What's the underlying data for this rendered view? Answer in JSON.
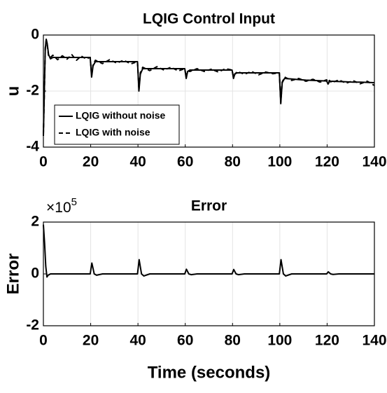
{
  "chart_data": [
    {
      "type": "line",
      "title": "LQIG Control Input",
      "ylabel": "u",
      "x": [
        0,
        0.4,
        0.8,
        1.2,
        1.6,
        2.2,
        3,
        4,
        6,
        8,
        10,
        12,
        14,
        16,
        18,
        19.8,
        20.4,
        21,
        22,
        25,
        28,
        31,
        34,
        37,
        39.8,
        40.4,
        41,
        42,
        45,
        48,
        51,
        54,
        57,
        59.8,
        60.4,
        61,
        62,
        65,
        68,
        71,
        74,
        77,
        79.8,
        80.4,
        81,
        82,
        85,
        88,
        91,
        94,
        97,
        99.8,
        100.4,
        101,
        102,
        105,
        108,
        111,
        114,
        117,
        119.8,
        120.4,
        121,
        122,
        125,
        128,
        131,
        134,
        137,
        140
      ],
      "series": [
        {
          "name": "LQIG without noise",
          "color": "#000000",
          "line_style": "solid",
          "values": [
            -3.6,
            -2.0,
            -0.5,
            -0.15,
            -0.3,
            -0.7,
            -0.85,
            -0.8,
            -0.8,
            -0.8,
            -0.8,
            -0.8,
            -0.8,
            -0.8,
            -0.8,
            -0.8,
            -1.5,
            -1.1,
            -0.95,
            -0.95,
            -0.95,
            -0.95,
            -0.95,
            -0.95,
            -0.95,
            -2.0,
            -1.4,
            -1.2,
            -1.2,
            -1.2,
            -1.2,
            -1.2,
            -1.2,
            -1.2,
            -1.55,
            -1.3,
            -1.25,
            -1.25,
            -1.25,
            -1.25,
            -1.25,
            -1.25,
            -1.25,
            -1.55,
            -1.38,
            -1.35,
            -1.35,
            -1.35,
            -1.35,
            -1.35,
            -1.35,
            -1.35,
            -2.45,
            -1.7,
            -1.55,
            -1.57,
            -1.59,
            -1.61,
            -1.62,
            -1.63,
            -1.64,
            -1.75,
            -1.66,
            -1.65,
            -1.66,
            -1.67,
            -1.68,
            -1.68,
            -1.69,
            -1.7
          ]
        },
        {
          "name": "LQIG with noise",
          "color": "#000000",
          "line_style": "dashed",
          "values": [
            -3.55,
            -2.1,
            -0.45,
            -0.2,
            -0.35,
            -0.75,
            -0.8,
            -0.72,
            -0.88,
            -0.74,
            -0.86,
            -0.7,
            -0.9,
            -0.75,
            -0.85,
            -0.8,
            -1.45,
            -1.05,
            -0.9,
            -1.02,
            -0.88,
            -1.0,
            -0.9,
            -1.03,
            -0.95,
            -1.95,
            -1.35,
            -1.15,
            -1.27,
            -1.13,
            -1.25,
            -1.15,
            -1.28,
            -1.2,
            -1.5,
            -1.28,
            -1.3,
            -1.2,
            -1.3,
            -1.22,
            -1.32,
            -1.2,
            -1.25,
            -1.5,
            -1.4,
            -1.3,
            -1.4,
            -1.3,
            -1.42,
            -1.32,
            -1.38,
            -1.35,
            -2.4,
            -1.68,
            -1.5,
            -1.62,
            -1.55,
            -1.65,
            -1.58,
            -1.68,
            -1.6,
            -1.7,
            -1.62,
            -1.7,
            -1.6,
            -1.72,
            -1.63,
            -1.74,
            -1.65,
            -1.8
          ]
        }
      ],
      "xlim": [
        0,
        140
      ],
      "xticks": [
        0,
        20,
        40,
        60,
        80,
        100,
        120,
        140
      ],
      "ylim": [
        -4,
        0
      ],
      "yticks": [
        -4,
        -2,
        0
      ],
      "grid": true,
      "legend": "lower left"
    },
    {
      "type": "line",
      "title": "Error",
      "ylabel": "Error",
      "xlabel": "Time (seconds)",
      "y_multiplier": "×10",
      "y_multiplier_exponent": "5",
      "x": [
        0,
        0.5,
        1,
        1.5,
        2,
        3,
        5,
        10,
        15,
        19.8,
        20.5,
        21.5,
        22.5,
        25,
        30,
        35,
        39.8,
        40.5,
        41.5,
        42.5,
        45,
        50,
        55,
        59.8,
        60.5,
        61.5,
        62.5,
        65,
        70,
        75,
        79.8,
        80.5,
        81.5,
        82.5,
        85,
        90,
        95,
        99.8,
        100.5,
        101.5,
        102.5,
        105,
        110,
        115,
        119.8,
        120.5,
        121.5,
        122.5,
        125,
        130,
        135,
        140
      ],
      "values": [
        1.9,
        1.2,
        0.3,
        -0.12,
        -0.05,
        0,
        0,
        0,
        0,
        0,
        0.42,
        0,
        -0.05,
        0,
        0,
        0,
        0,
        0.55,
        0,
        -0.08,
        0,
        0,
        0,
        0,
        0.18,
        0,
        -0.03,
        0,
        0,
        0,
        0,
        0.17,
        0,
        -0.03,
        0,
        0,
        0,
        0,
        0.55,
        0,
        -0.08,
        0,
        0,
        0,
        0,
        0.08,
        0,
        -0.02,
        0,
        0,
        0,
        0
      ],
      "color": "#000000",
      "xlim": [
        0,
        140
      ],
      "xticks": [
        0,
        20,
        40,
        60,
        80,
        100,
        120,
        140
      ],
      "ylim": [
        -2,
        2
      ],
      "yticks": [
        -2,
        0,
        2
      ],
      "grid": true
    }
  ]
}
